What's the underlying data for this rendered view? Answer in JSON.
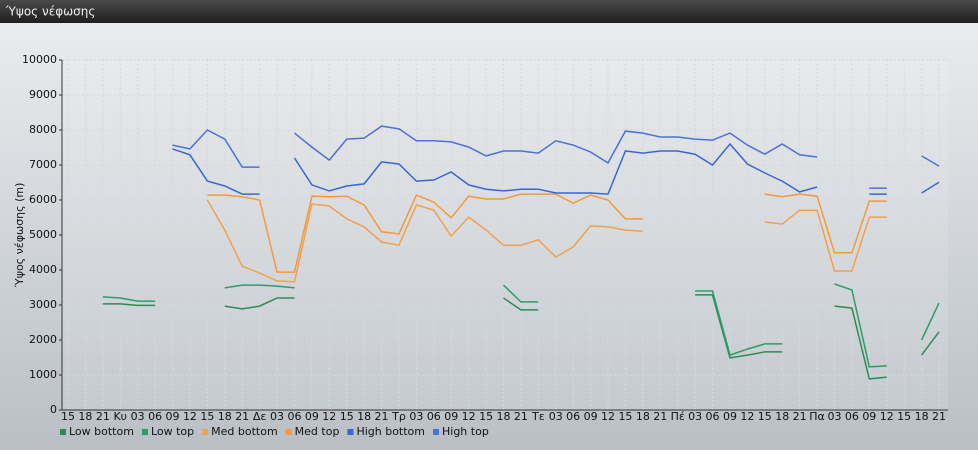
{
  "chart_data": {
    "type": "line",
    "title": "Ύψος νέφωσης",
    "y_label": "Ύψος νέφωσης (m)",
    "categories": [
      "15",
      "18",
      "21",
      "Κυ",
      "03",
      "06",
      "09",
      "12",
      "15",
      "18",
      "21",
      "Δε",
      "03",
      "06",
      "09",
      "12",
      "15",
      "18",
      "21",
      "Τρ",
      "03",
      "06",
      "09",
      "12",
      "15",
      "18",
      "21",
      "Τε",
      "03",
      "06",
      "09",
      "12",
      "15",
      "18",
      "21",
      "Πέ",
      "03",
      "06",
      "09",
      "12",
      "15",
      "18",
      "21",
      "Πα",
      "03",
      "06",
      "09",
      "12",
      "15",
      "18",
      "21"
    ],
    "ylim": [
      0,
      10000
    ],
    "yticks": [
      0,
      1000,
      2000,
      3000,
      4000,
      5000,
      6000,
      7000,
      8000,
      9000,
      10000
    ],
    "grid": true,
    "legend": "bottom-left",
    "series": [
      {
        "name": "Low bottom",
        "color": "#2e8b57",
        "values": [
          null,
          null,
          3030,
          3030,
          2990,
          2990,
          null,
          null,
          null,
          2970,
          2890,
          2970,
          3200,
          3200,
          null,
          null,
          null,
          null,
          null,
          null,
          null,
          null,
          null,
          null,
          null,
          3200,
          2860,
          2860,
          null,
          null,
          null,
          null,
          null,
          null,
          null,
          null,
          3290,
          3290,
          1490,
          1570,
          1660,
          1660,
          null,
          null,
          2970,
          2910,
          890,
          940,
          null,
          1570,
          2230
        ]
      },
      {
        "name": "Low top",
        "color": "#2a9d68",
        "values": [
          null,
          null,
          3230,
          3200,
          3110,
          3110,
          null,
          null,
          null,
          3490,
          3570,
          3570,
          3540,
          3490,
          null,
          null,
          null,
          null,
          null,
          null,
          null,
          null,
          null,
          null,
          null,
          3570,
          3090,
          3090,
          null,
          null,
          null,
          null,
          null,
          null,
          null,
          null,
          3400,
          3400,
          1570,
          1740,
          1890,
          1890,
          null,
          null,
          3600,
          3430,
          1230,
          1260,
          null,
          2000,
          3060
        ]
      },
      {
        "name": "Med bottom",
        "color": "#f0a050",
        "values": [
          null,
          null,
          null,
          null,
          null,
          null,
          null,
          null,
          6000,
          5140,
          4110,
          3910,
          3690,
          3660,
          5890,
          5830,
          5460,
          5230,
          4800,
          4710,
          5860,
          5710,
          4970,
          5510,
          5140,
          4710,
          4710,
          4860,
          4370,
          4660,
          5260,
          5230,
          5140,
          5110,
          null,
          null,
          null,
          null,
          null,
          null,
          5370,
          5310,
          5710,
          5710,
          3970,
          3970,
          5510,
          5510,
          null,
          null,
          null
        ]
      },
      {
        "name": "Med top",
        "color": "#f29a3c",
        "values": [
          null,
          null,
          null,
          null,
          null,
          null,
          null,
          null,
          6140,
          6140,
          6090,
          6000,
          3940,
          3940,
          6110,
          6090,
          6110,
          5860,
          5090,
          5030,
          6140,
          5940,
          5490,
          6110,
          6030,
          6030,
          6170,
          6170,
          6170,
          5910,
          6140,
          6000,
          5460,
          5460,
          null,
          null,
          null,
          null,
          null,
          null,
          6170,
          6090,
          6170,
          6110,
          4490,
          4490,
          5970,
          5970,
          null,
          null,
          null
        ]
      },
      {
        "name": "High bottom",
        "color": "#3a66d4",
        "values": [
          null,
          null,
          null,
          null,
          null,
          null,
          7460,
          7290,
          6540,
          6400,
          6170,
          6170,
          null,
          7200,
          6430,
          6260,
          6400,
          6460,
          7090,
          7030,
          6540,
          6570,
          6800,
          6430,
          6310,
          6260,
          6310,
          6310,
          6200,
          6200,
          6200,
          6170,
          7400,
          7340,
          7400,
          7400,
          7310,
          7000,
          7600,
          7030,
          6770,
          6540,
          6230,
          6370,
          null,
          null,
          6170,
          6170,
          null,
          6200,
          6510
        ]
      },
      {
        "name": "High top",
        "color": "#4a72d8",
        "values": [
          null,
          null,
          null,
          null,
          null,
          null,
          7570,
          7460,
          8000,
          7740,
          6940,
          6940,
          null,
          7910,
          7510,
          7140,
          7740,
          7770,
          8110,
          8030,
          7690,
          7690,
          7660,
          7510,
          7260,
          7400,
          7400,
          7340,
          7690,
          7570,
          7370,
          7060,
          7970,
          7910,
          7800,
          7800,
          7740,
          7710,
          7910,
          7570,
          7310,
          7600,
          7290,
          7230,
          null,
          null,
          6340,
          6340,
          null,
          7260,
          6970
        ]
      }
    ]
  }
}
